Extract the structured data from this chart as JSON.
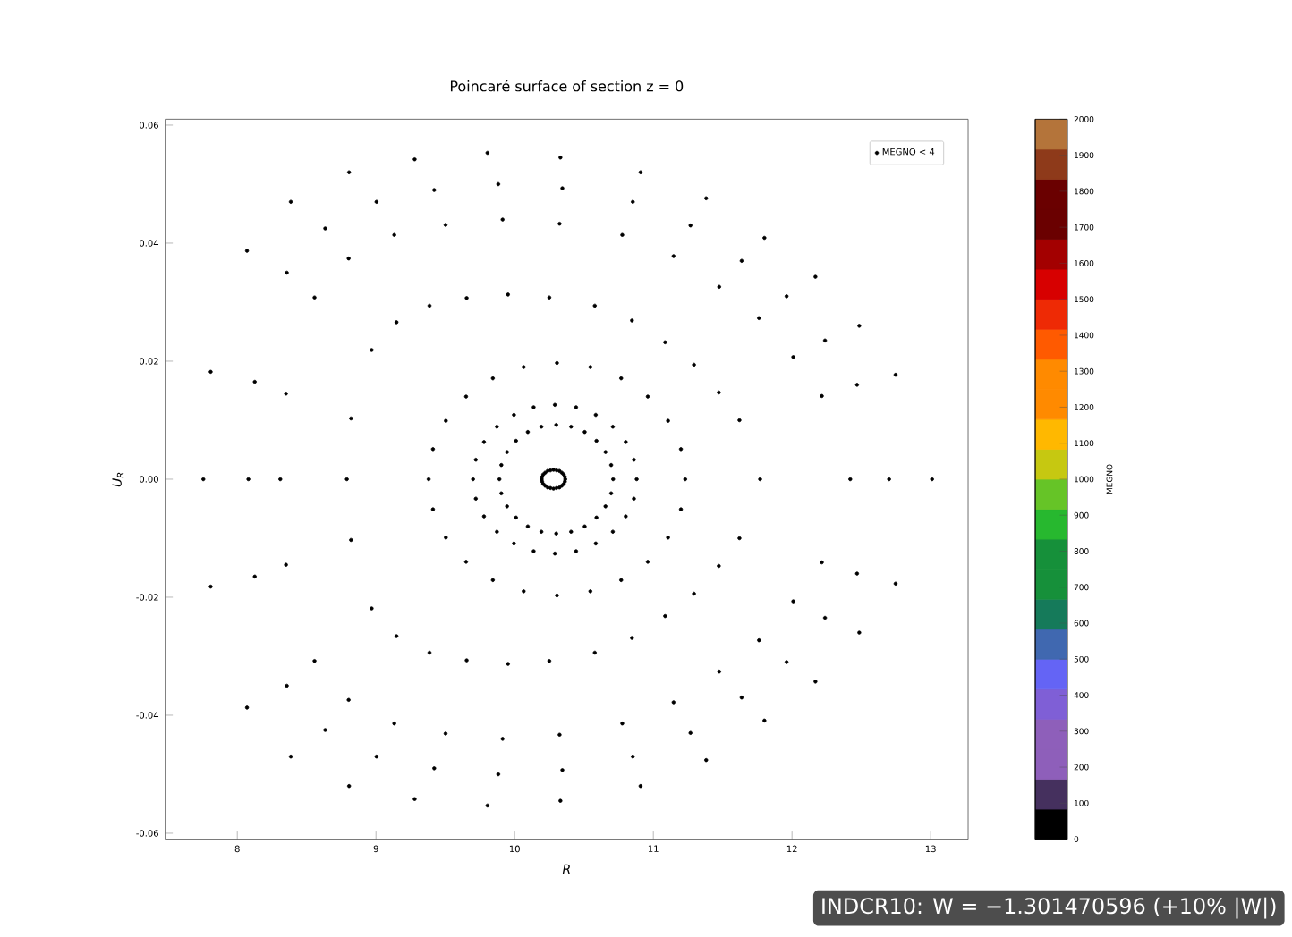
{
  "chart_data": {
    "type": "scatter",
    "title": "Poincaré surface of section z = 0",
    "xlabel": "R",
    "ylabel": "U$_{R}$",
    "clabel": "MEGNO",
    "xlim": [
      7.48,
      13.27
    ],
    "ylim": [
      -0.061,
      0.061
    ],
    "xticks": [
      8,
      9,
      10,
      11,
      12,
      13
    ],
    "yticks": [
      {
        "value": -0.06,
        "label": "-0.06"
      },
      {
        "value": -0.04,
        "label": "-0.04"
      },
      {
        "value": -0.02,
        "label": "-0.02"
      },
      {
        "value": 0,
        "label": "0.00"
      },
      {
        "value": 0.02,
        "label": "0.02"
      },
      {
        "value": 0.04,
        "label": "0.04"
      },
      {
        "value": 0.06,
        "label": "0.06"
      }
    ],
    "clim": [
      0,
      2000
    ],
    "cticks": [
      0,
      100,
      200,
      300,
      400,
      500,
      600,
      700,
      800,
      900,
      1000,
      1100,
      1200,
      1300,
      1400,
      1500,
      1600,
      1700,
      1800,
      1900,
      2000
    ],
    "legend": "top right",
    "grid": false,
    "annotations": [
      "INDCR10: W = −1.301470596 (+10% |W|)"
    ],
    "series": [
      {
        "name": "MEGNO < 4",
        "color": "#000000",
        "x": [
          10.195,
          10.206,
          10.238,
          10.28,
          10.323,
          10.354,
          10.365,
          10.354,
          10.323,
          10.28,
          10.238,
          10.206,
          9.89,
          9.945,
          10.095,
          10.3,
          10.505,
          10.655,
          10.71,
          10.655,
          10.505,
          10.3,
          10.095,
          9.945,
          9.7,
          9.779,
          9.995,
          10.29,
          10.585,
          10.801,
          10.88,
          10.801,
          10.585,
          10.29,
          9.995,
          9.779,
          9.38,
          9.504,
          9.843,
          10.305,
          10.768,
          11.106,
          11.23,
          11.106,
          10.768,
          10.305,
          9.843,
          9.504,
          8.79,
          8.969,
          9.386,
          9.952,
          10.578,
          11.085,
          11.472,
          11.77,
          11.472,
          11.085,
          10.578,
          9.952,
          9.386,
          8.969,
          8.31,
          8.557,
          9.132,
          9.913,
          10.776,
          11.475,
          12.009,
          12.42,
          12.009,
          11.475,
          10.776,
          9.913,
          9.132,
          8.557,
          8.08,
          8.357,
          9.004,
          9.882,
          10.852,
          11.637,
          12.238,
          12.7,
          12.238,
          11.637,
          10.852,
          9.882,
          9.004,
          8.357,
          7.755,
          8.07,
          8.806,
          9.804,
          10.908,
          11.801,
          12.485,
          13.01,
          12.485,
          11.801,
          10.908,
          9.804,
          8.806,
          8.07,
          8.82,
          9.148,
          9.654,
          10.25,
          10.846,
          11.293,
          11.621,
          8.82,
          9.148,
          9.654,
          10.25,
          10.846,
          11.293,
          11.621,
          8.351,
          8.803,
          9.502,
          10.324,
          11.146,
          11.762,
          12.215,
          8.351,
          8.803,
          9.502,
          10.324,
          11.146,
          11.762,
          12.215,
          8.126,
          8.634,
          9.42,
          10.344,
          11.268,
          11.961,
          12.469,
          8.126,
          8.634,
          9.42,
          10.344,
          11.268,
          11.961,
          12.469,
          7.808,
          8.386,
          9.279,
          10.33,
          11.381,
          12.169,
          12.747,
          7.808,
          8.386,
          9.279,
          10.33,
          11.381,
          12.169,
          12.747,
          10.198,
          10.22,
          10.258,
          10.302,
          10.34,
          10.362,
          10.198,
          10.22,
          10.258,
          10.302,
          10.34,
          10.362,
          9.904,
          10.01,
          10.193,
          10.407,
          10.59,
          10.696,
          9.904,
          10.01,
          10.193,
          10.407,
          10.59,
          10.696,
          9.72,
          9.872,
          10.137,
          10.443,
          10.708,
          10.86,
          9.72,
          9.872,
          10.137,
          10.443,
          10.708,
          10.86,
          9.411,
          9.65,
          10.065,
          10.546,
          10.96,
          11.199,
          9.411,
          9.65,
          10.065,
          10.546,
          10.96,
          11.199
        ],
        "values": [
          0,
          0.0008,
          0.0014,
          0.0016,
          0.0014,
          0.0008,
          0,
          -0.0008,
          -0.0014,
          -0.0016,
          -0.0014,
          -0.0008,
          0,
          0.0046,
          0.008,
          0.0092,
          0.008,
          0.0046,
          0,
          -0.0046,
          -0.008,
          -0.0092,
          -0.008,
          -0.0046,
          0,
          0.0063,
          0.0109,
          0.0126,
          0.0109,
          0.0063,
          0,
          -0.0063,
          -0.0109,
          -0.0126,
          -0.0109,
          -0.0063,
          0,
          0.0099,
          0.0171,
          0.0197,
          0.0171,
          0.0099,
          0,
          -0.0099,
          -0.0171,
          -0.0197,
          -0.0171,
          -0.0099,
          0,
          0.0219,
          0.0294,
          0.0313,
          0.0294,
          0.0232,
          0.0147,
          0,
          -0.0147,
          -0.0232,
          -0.0294,
          -0.0313,
          -0.0294,
          -0.0219,
          0,
          0.0308,
          0.0414,
          0.044,
          0.0414,
          0.0326,
          0.0207,
          0,
          -0.0207,
          -0.0326,
          -0.0414,
          -0.044,
          -0.0414,
          -0.0308,
          0,
          0.035,
          0.047,
          0.05,
          0.047,
          0.037,
          0.0235,
          0,
          -0.0235,
          -0.037,
          -0.047,
          -0.05,
          -0.047,
          -0.035,
          0,
          0.0387,
          0.052,
          0.0553,
          0.052,
          0.0409,
          0.026,
          0,
          -0.026,
          -0.0409,
          -0.052,
          -0.0553,
          -0.052,
          -0.0387,
          0.0103,
          0.0266,
          0.0307,
          0.0308,
          0.0269,
          0.0194,
          0.01,
          -0.0103,
          -0.0266,
          -0.0307,
          -0.0308,
          -0.0269,
          -0.0194,
          -0.01,
          0.0145,
          0.0374,
          0.0431,
          0.0433,
          0.0378,
          0.0273,
          0.0141,
          -0.0145,
          -0.0374,
          -0.0431,
          -0.0433,
          -0.0378,
          -0.0273,
          -0.0141,
          0.0165,
          0.0425,
          0.049,
          0.0493,
          0.043,
          0.031,
          0.016,
          -0.0165,
          -0.0425,
          -0.049,
          -0.0493,
          -0.043,
          -0.031,
          -0.016,
          0.0182,
          0.047,
          0.0542,
          0.0545,
          0.0476,
          0.0343,
          0.0177,
          -0.0182,
          -0.047,
          -0.0542,
          -0.0545,
          -0.0476,
          -0.0343,
          -0.0177,
          0.0004,
          0.0011,
          0.0015,
          0.0015,
          0.0011,
          0.0004,
          -0.0004,
          -0.0011,
          -0.0015,
          -0.0015,
          -0.0011,
          -0.0004,
          0.0024,
          0.0065,
          0.0089,
          0.0089,
          0.0065,
          0.0024,
          -0.0024,
          -0.0065,
          -0.0089,
          -0.0089,
          -0.0065,
          -0.0024,
          0.0033,
          0.0089,
          0.0122,
          0.0122,
          0.0089,
          0.0033,
          -0.0033,
          -0.0089,
          -0.0122,
          -0.0122,
          -0.0089,
          -0.0033,
          0.0051,
          0.014,
          0.019,
          0.019,
          0.014,
          0.0051,
          -0.0051,
          -0.014,
          -0.019,
          -0.019,
          -0.014,
          -0.0051
        ]
      }
    ]
  }
}
